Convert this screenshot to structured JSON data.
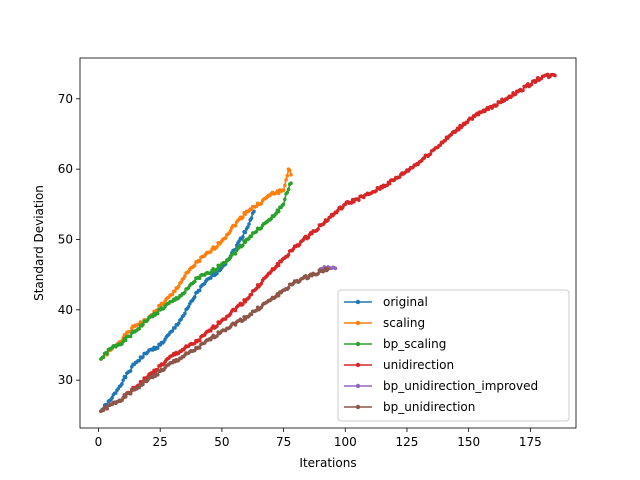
{
  "chart_data": {
    "type": "line",
    "title": "",
    "xlabel": "Iterations",
    "ylabel": "Standard Deviation",
    "xlim": [
      -7.5,
      193.5
    ],
    "ylim": [
      23.2,
      75.8
    ],
    "xticks": [
      0,
      25,
      50,
      75,
      100,
      125,
      150,
      175
    ],
    "yticks": [
      30,
      40,
      50,
      60,
      70
    ],
    "grid": false,
    "legend_position": "lower-right",
    "series": [
      {
        "name": "original",
        "color": "#1f77b4",
        "points": [
          [
            1,
            25.6
          ],
          [
            5,
            27.2
          ],
          [
            10,
            30.0
          ],
          [
            15,
            32.5
          ],
          [
            20,
            34.0
          ],
          [
            25,
            35.0
          ],
          [
            30,
            37.0
          ],
          [
            35,
            39.5
          ],
          [
            40,
            42.5
          ],
          [
            45,
            44.5
          ],
          [
            50,
            46.0
          ],
          [
            55,
            48.5
          ],
          [
            60,
            51.5
          ],
          [
            63,
            54.0
          ]
        ]
      },
      {
        "name": "scaling",
        "color": "#ff7f0e",
        "points": [
          [
            1,
            33.0
          ],
          [
            5,
            34.3
          ],
          [
            10,
            36.0
          ],
          [
            15,
            37.8
          ],
          [
            20,
            38.6
          ],
          [
            25,
            40.6
          ],
          [
            30,
            42.2
          ],
          [
            35,
            44.8
          ],
          [
            40,
            46.8
          ],
          [
            45,
            48.2
          ],
          [
            50,
            49.8
          ],
          [
            55,
            52.0
          ],
          [
            60,
            54.0
          ],
          [
            65,
            55.0
          ],
          [
            70,
            56.5
          ],
          [
            75,
            57.0
          ],
          [
            77,
            60.0
          ],
          [
            78,
            59.2
          ]
        ]
      },
      {
        "name": "bp_scaling",
        "color": "#2ca02c",
        "points": [
          [
            1,
            33.0
          ],
          [
            5,
            34.5
          ],
          [
            10,
            35.5
          ],
          [
            15,
            37.0
          ],
          [
            20,
            38.6
          ],
          [
            25,
            40.0
          ],
          [
            30,
            41.2
          ],
          [
            35,
            42.5
          ],
          [
            40,
            44.5
          ],
          [
            45,
            45.2
          ],
          [
            50,
            46.5
          ],
          [
            55,
            48.0
          ],
          [
            60,
            50.0
          ],
          [
            65,
            51.5
          ],
          [
            70,
            53.0
          ],
          [
            75,
            55.0
          ],
          [
            76,
            56.5
          ],
          [
            78,
            58.0
          ]
        ]
      },
      {
        "name": "unidirection",
        "color": "#d62728",
        "points": [
          [
            1,
            25.6
          ],
          [
            10,
            27.5
          ],
          [
            20,
            30.5
          ],
          [
            30,
            33.5
          ],
          [
            40,
            35.5
          ],
          [
            50,
            38.5
          ],
          [
            60,
            41.5
          ],
          [
            70,
            45.5
          ],
          [
            80,
            49.0
          ],
          [
            90,
            52.0
          ],
          [
            100,
            55.0
          ],
          [
            110,
            56.5
          ],
          [
            120,
            58.5
          ],
          [
            130,
            61.0
          ],
          [
            140,
            64.0
          ],
          [
            150,
            67.0
          ],
          [
            160,
            69.0
          ],
          [
            170,
            71.0
          ],
          [
            180,
            73.2
          ],
          [
            185,
            73.3
          ]
        ]
      },
      {
        "name": "bp_unidirection_improved",
        "color": "#9467bd",
        "points": [
          [
            90,
            45.8
          ],
          [
            92,
            45.9
          ],
          [
            94,
            45.9
          ],
          [
            96,
            45.9
          ]
        ]
      },
      {
        "name": "bp_unidirection",
        "color": "#8c564b",
        "points": [
          [
            1,
            25.6
          ],
          [
            10,
            27.5
          ],
          [
            20,
            30.0
          ],
          [
            30,
            32.5
          ],
          [
            40,
            34.5
          ],
          [
            50,
            37.0
          ],
          [
            60,
            39.0
          ],
          [
            70,
            41.5
          ],
          [
            80,
            44.0
          ],
          [
            90,
            45.5
          ],
          [
            93,
            45.8
          ]
        ]
      }
    ]
  }
}
